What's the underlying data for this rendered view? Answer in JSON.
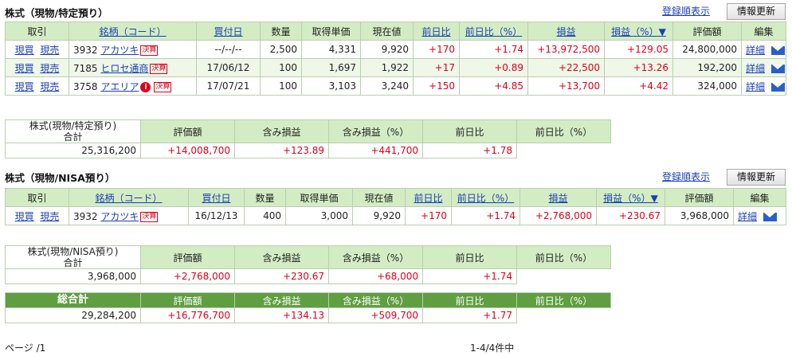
{
  "sections": [
    {
      "title": "株式（現物/特定預り）",
      "sort_link": "登録順表示",
      "refresh_button": "情報更新",
      "headers": [
        "取引",
        "銘柄（コード）",
        "買付日",
        "数量",
        "取得単価",
        "現在値",
        "前日比",
        "前日比（%）",
        "損益",
        "損益（%）▼",
        "評価額",
        "編集"
      ],
      "rows": [
        {
          "buy": "現買",
          "sell": "現売",
          "code": "3932",
          "name": "アカツキ",
          "badge": "決算",
          "warn": "",
          "date": "--/--/--",
          "qty": "2,500",
          "cost": "4,331",
          "price": "9,920",
          "chg": "+170",
          "chgp": "+1.74",
          "pl": "+13,972,500",
          "plp": "+129.05",
          "value": "24,800,000",
          "detail": "詳細"
        },
        {
          "buy": "現買",
          "sell": "現売",
          "code": "7185",
          "name": "ヒロセ通商",
          "badge": "決算",
          "warn": "",
          "date": "17/06/12",
          "qty": "100",
          "cost": "1,697",
          "price": "1,922",
          "chg": "+17",
          "chgp": "+0.89",
          "pl": "+22,500",
          "plp": "+13.26",
          "value": "192,200",
          "detail": "詳細"
        },
        {
          "buy": "現買",
          "sell": "現売",
          "code": "3758",
          "name": "アエリア",
          "badge": "決算",
          "warn": "!",
          "date": "17/07/21",
          "qty": "100",
          "cost": "3,103",
          "price": "3,240",
          "chg": "+150",
          "chgp": "+4.85",
          "pl": "+13,700",
          "plp": "+4.42",
          "value": "324,000",
          "detail": "詳細"
        }
      ],
      "summary": {
        "label1": "株式(現物/特定預り)",
        "label2": "合計",
        "headers": [
          "評価額",
          "含み損益",
          "含み損益（%）",
          "前日比",
          "前日比（%）"
        ],
        "values": [
          "25,316,200",
          "+14,008,700",
          "+123.89",
          "+441,700",
          "+1.78"
        ]
      }
    },
    {
      "title": "株式（現物/NISA預り）",
      "sort_link": "登録順表示",
      "refresh_button": "情報更新",
      "headers": [
        "取引",
        "銘柄（コード）",
        "買付日",
        "数量",
        "取得単価",
        "現在値",
        "前日比",
        "前日比（%）",
        "損益",
        "損益（%）▼",
        "評価額",
        "編集"
      ],
      "rows": [
        {
          "buy": "現買",
          "sell": "現売",
          "code": "3932",
          "name": "アカツキ",
          "badge": "決算",
          "warn": "",
          "date": "16/12/13",
          "qty": "400",
          "cost": "3,000",
          "price": "9,920",
          "chg": "+170",
          "chgp": "+1.74",
          "pl": "+2,768,000",
          "plp": "+230.67",
          "value": "3,968,000",
          "detail": "詳細"
        }
      ],
      "summary": {
        "label1": "株式(現物/NISA預り)",
        "label2": "合計",
        "headers": [
          "評価額",
          "含み損益",
          "含み損益（%）",
          "前日比",
          "前日比（%）"
        ],
        "values": [
          "3,968,000",
          "+2,768,000",
          "+230.67",
          "+68,000",
          "+1.74"
        ]
      }
    }
  ],
  "total": {
    "label": "総合計",
    "headers": [
      "評価額",
      "含み損益",
      "含み損益（%）",
      "前日比",
      "前日比（%）"
    ],
    "values": [
      "29,284,200",
      "+16,776,700",
      "+134.13",
      "+509,700",
      "+1.77"
    ]
  },
  "footer": {
    "page": "ページ /1",
    "count": "1-4/4件中"
  }
}
